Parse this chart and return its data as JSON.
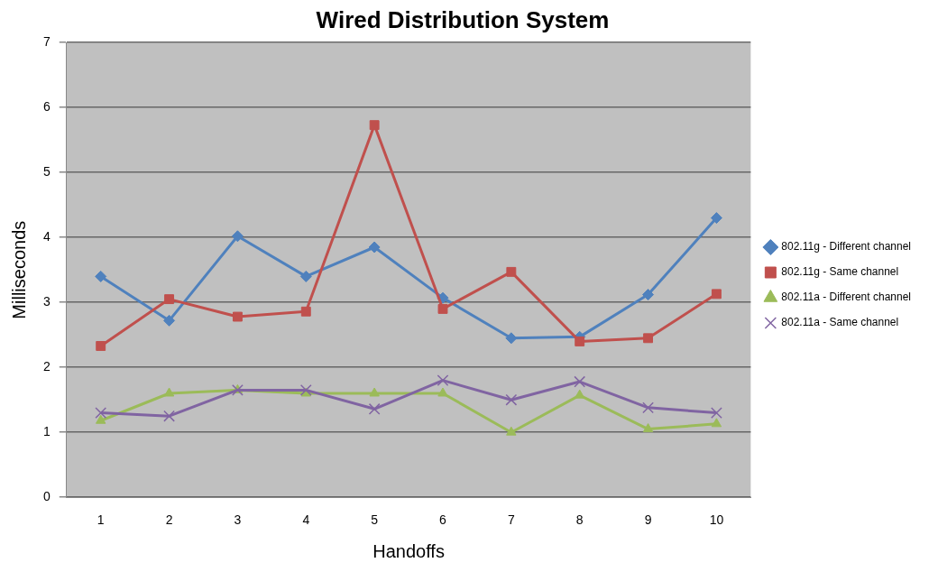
{
  "chart_data": {
    "type": "line",
    "title": "Wired Distribution System",
    "xlabel": "Handoffs",
    "ylabel": "Milliseconds",
    "categories": [
      "1",
      "2",
      "3",
      "4",
      "5",
      "6",
      "7",
      "8",
      "9",
      "10"
    ],
    "series": [
      {
        "name": "802.11g - Different channel",
        "color": "#4f81bd",
        "marker": "diamond",
        "values": [
          3.4,
          2.72,
          4.02,
          3.4,
          3.85,
          3.07,
          2.45,
          2.47,
          3.12,
          4.3
        ]
      },
      {
        "name": "802.11g - Same channel",
        "color": "#c0504d",
        "marker": "square",
        "values": [
          2.33,
          3.05,
          2.78,
          2.86,
          5.73,
          2.9,
          3.47,
          2.4,
          2.45,
          3.13
        ]
      },
      {
        "name": "802.11a - Different channel",
        "color": "#9bbb59",
        "marker": "triangle",
        "values": [
          1.18,
          1.6,
          1.65,
          1.6,
          1.6,
          1.6,
          1.0,
          1.57,
          1.05,
          1.13
        ]
      },
      {
        "name": "802.11a - Same channel",
        "color": "#8064a2",
        "marker": "cross",
        "values": [
          1.3,
          1.25,
          1.65,
          1.65,
          1.36,
          1.8,
          1.5,
          1.78,
          1.38,
          1.3
        ]
      }
    ],
    "ylim": [
      0,
      7
    ],
    "yticks": [
      0,
      1,
      2,
      3,
      4,
      5,
      6,
      7
    ],
    "grid": "y",
    "legend": "right"
  }
}
